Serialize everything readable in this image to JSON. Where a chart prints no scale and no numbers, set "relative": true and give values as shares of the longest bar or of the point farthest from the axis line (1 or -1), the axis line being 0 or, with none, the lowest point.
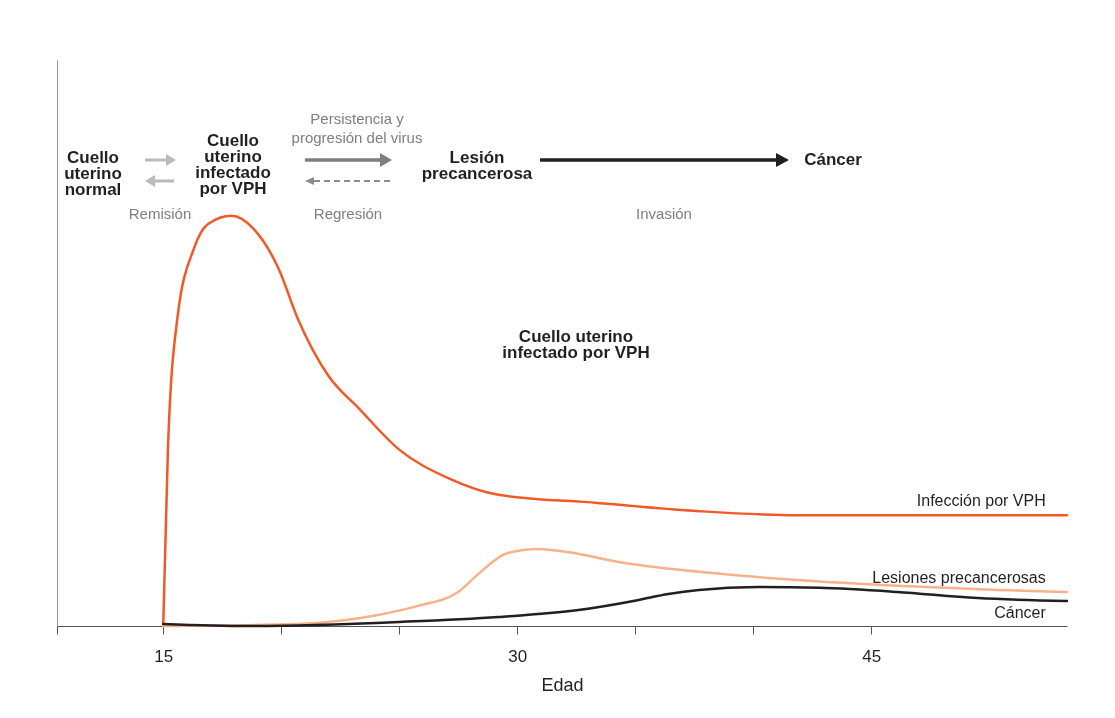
{
  "chart_data": {
    "type": "line",
    "relative": true,
    "xlabel": "Edad",
    "xlim": [
      10.5,
      53.3
    ],
    "xticks": [
      {
        "value": 10.5,
        "label": null
      },
      15,
      {
        "value": 20,
        "label": null
      },
      {
        "value": 25,
        "label": null
      },
      30,
      {
        "value": 35,
        "label": null
      },
      {
        "value": 40,
        "label": null
      },
      45
    ],
    "grid": false,
    "legend": false,
    "marker": "none",
    "line_style": "solid",
    "annotations": [
      "Cuello\nuterino\nnormal",
      "Cuello\nuterino\ninfectado\npor VPH",
      "Persistencia y\nprogresión del virus",
      "Lesión\nprecancerosa",
      "Cáncer",
      "Remisión",
      "Regresión",
      "Invasión",
      "Cuello uterino\ninfectado por VPH"
    ],
    "series": [
      {
        "name": "Infección por VPH",
        "color": "#f05a28",
        "x": [
          15,
          15.2,
          15.6,
          16.3,
          16.9,
          17.9,
          18.8,
          19.9,
          20.7,
          22.0,
          23.3,
          25,
          27.1,
          29.2,
          33.4,
          37.7,
          41.9,
          46.1,
          53.3
        ],
        "values": [
          0,
          0.43,
          0.75,
          0.92,
          0.98,
          1.0,
          0.97,
          0.87,
          0.75,
          0.61,
          0.53,
          0.43,
          0.36,
          0.32,
          0.3,
          0.28,
          0.27,
          0.27,
          0.27
        ]
      },
      {
        "name": "Lesiones precancerosas",
        "color": "#f7b28a",
        "x": [
          15,
          20.7,
          24.1,
          25.8,
          27.5,
          28.3,
          29.6,
          30.9,
          32.2,
          34.3,
          37.7,
          41.9,
          46.1,
          50.4,
          53.3
        ],
        "values": [
          0,
          0.005,
          0.027,
          0.049,
          0.083,
          0.124,
          0.178,
          0.188,
          0.18,
          0.156,
          0.132,
          0.112,
          0.098,
          0.088,
          0.083
        ]
      },
      {
        "name": "Cáncer",
        "color": "#231f20",
        "x": [
          15,
          18.6,
          25,
          29.2,
          32.6,
          35.1,
          36.4,
          37.7,
          40.2,
          42.8,
          46.1,
          49.5,
          53.3
        ],
        "values": [
          0.005,
          0,
          0.01,
          0.022,
          0.039,
          0.063,
          0.078,
          0.088,
          0.095,
          0.093,
          0.083,
          0.068,
          0.061
        ]
      }
    ]
  }
}
